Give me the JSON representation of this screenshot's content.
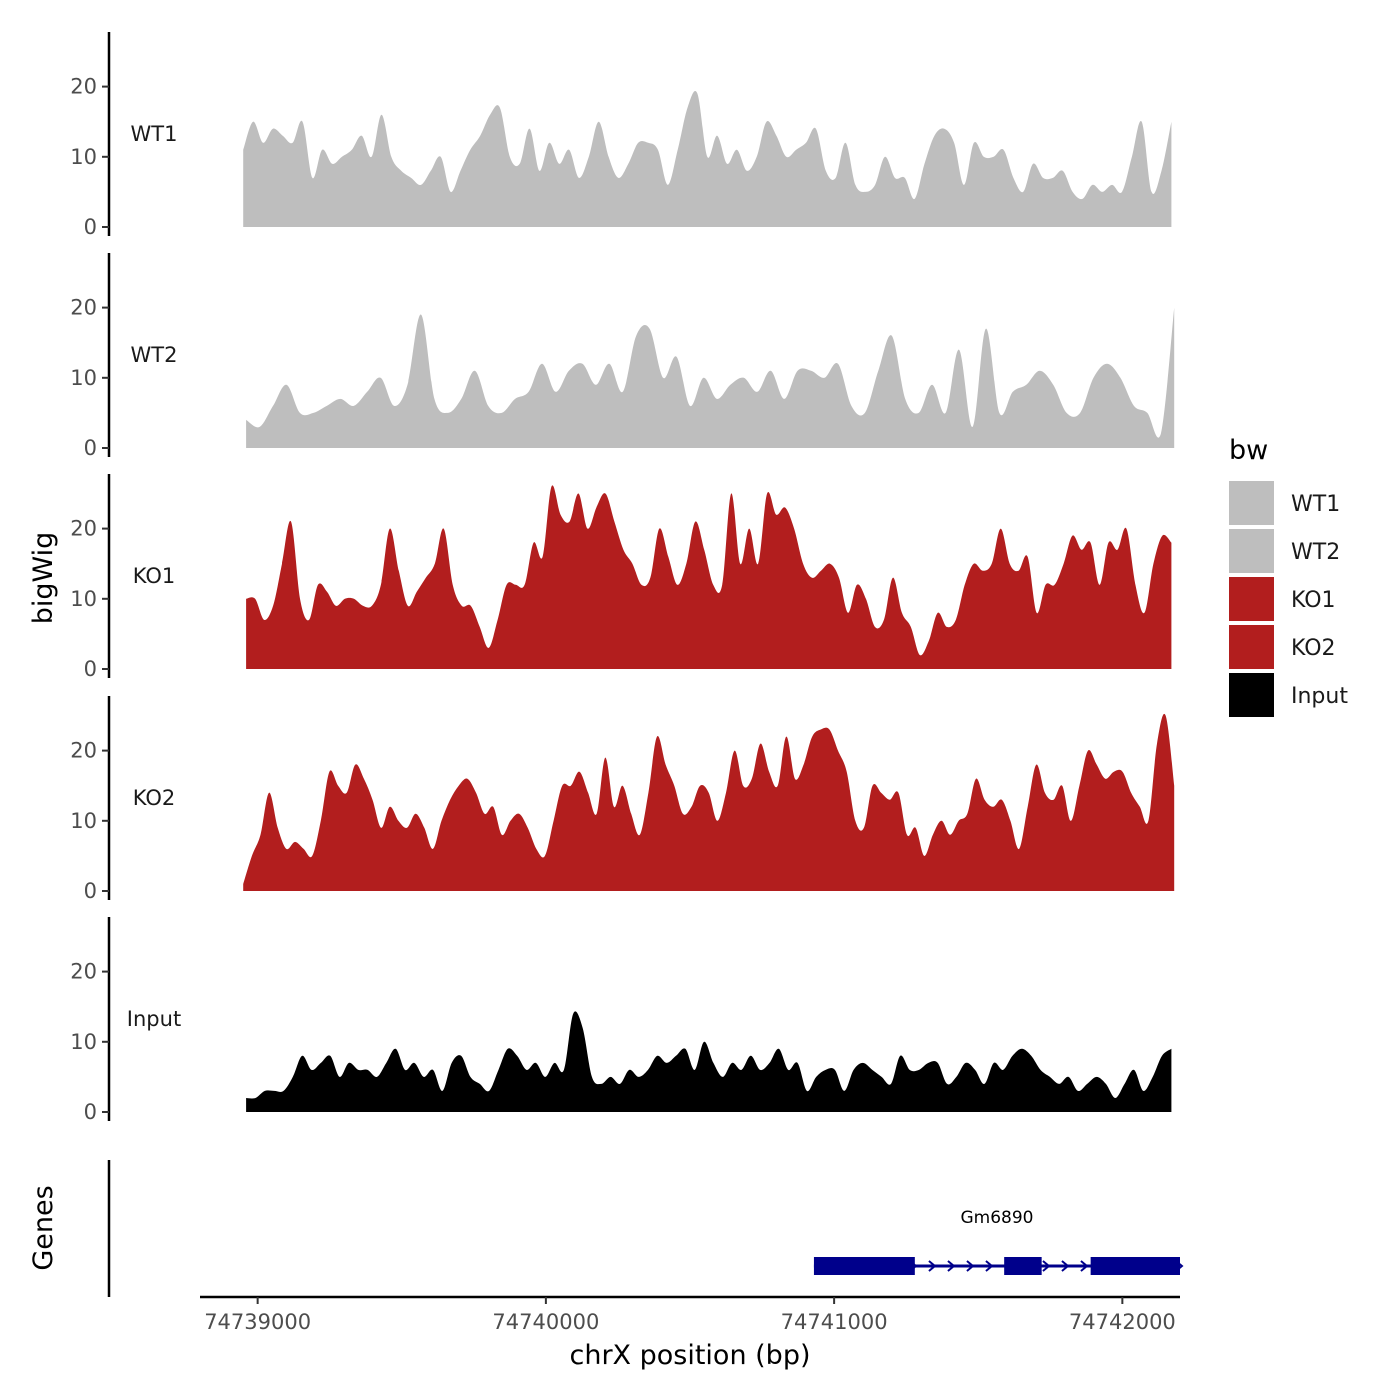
{
  "chart_data": {
    "type": "area",
    "ylabel": "bigWig",
    "genes_label": "Genes",
    "xlabel": "chrX position (bp)",
    "x_range": [
      74738800,
      74742200
    ],
    "x_ticks": [
      74739000,
      74740000,
      74741000,
      74742000
    ],
    "y_range": [
      0,
      28
    ],
    "y_ticks": [
      0,
      10,
      20
    ],
    "legend": {
      "title": "bw",
      "entries": [
        {
          "label": "WT1",
          "color": "#bebebe"
        },
        {
          "label": "WT2",
          "color": "#bebebe"
        },
        {
          "label": "KO1",
          "color": "#b21e1e"
        },
        {
          "label": "KO2",
          "color": "#b21e1e"
        },
        {
          "label": "Input",
          "color": "#000000"
        }
      ]
    },
    "series": [
      {
        "name": "WT1",
        "color": "#bebebe",
        "x_start": 74738950,
        "x_end": 74742170,
        "values": [
          11,
          15,
          12,
          14,
          13,
          12,
          15,
          7,
          11,
          9,
          10,
          11,
          13,
          10,
          16,
          10,
          8,
          7,
          6,
          8,
          10,
          5,
          8,
          11,
          13,
          16,
          17,
          10,
          9,
          14,
          8,
          12,
          9,
          11,
          7,
          10,
          15,
          10,
          7,
          9,
          12,
          12,
          11,
          6,
          11,
          17,
          19,
          10,
          13,
          9,
          11,
          8,
          10,
          15,
          13,
          10,
          11,
          12,
          14,
          8,
          7,
          12,
          6,
          5,
          6,
          10,
          7,
          7,
          4,
          9,
          13,
          14,
          12,
          6,
          12,
          10,
          10,
          11,
          7,
          5,
          9,
          7,
          7,
          8,
          5,
          4,
          6,
          5,
          6,
          5,
          10,
          15,
          5,
          8,
          15
        ]
      },
      {
        "name": "WT2",
        "color": "#bebebe",
        "x_start": 74738960,
        "x_end": 74742180,
        "values": [
          4,
          3,
          6,
          9,
          5,
          5,
          6,
          7,
          6,
          8,
          10,
          6,
          9,
          19,
          7,
          5,
          7,
          11,
          6,
          5,
          7,
          8,
          12,
          8,
          11,
          12,
          9,
          12,
          8,
          16,
          17,
          10,
          13,
          6,
          10,
          7,
          9,
          10,
          8,
          11,
          7,
          11,
          11,
          10,
          12,
          6,
          5,
          11,
          16,
          7,
          5,
          9,
          5,
          14,
          3,
          17,
          5,
          8,
          9,
          11,
          9,
          5,
          5,
          10,
          12,
          10,
          6,
          5,
          2,
          20
        ]
      },
      {
        "name": "KO1",
        "color": "#b21e1e",
        "x_start": 74738960,
        "x_end": 74742170,
        "values": [
          10,
          10,
          7,
          9,
          15,
          21,
          10,
          7,
          12,
          11,
          9,
          10,
          10,
          9,
          9,
          12,
          20,
          14,
          9,
          11,
          13,
          15,
          20,
          12,
          9,
          9,
          6,
          3,
          7,
          12,
          12,
          12,
          18,
          16,
          26,
          22,
          21,
          25,
          20,
          23,
          25,
          21,
          17,
          15,
          12,
          13,
          20,
          16,
          12,
          15,
          21,
          17,
          12,
          12,
          25,
          15,
          20,
          15,
          25,
          22,
          23,
          20,
          15,
          13,
          14,
          15,
          13,
          8,
          12,
          10,
          6,
          7,
          13,
          8,
          6,
          2,
          4,
          8,
          6,
          7,
          12,
          15,
          14,
          15,
          20,
          15,
          14,
          16,
          8,
          12,
          12,
          15,
          19,
          17,
          18,
          12,
          18,
          17,
          20,
          12,
          8,
          15,
          19,
          18
        ]
      },
      {
        "name": "KO2",
        "color": "#b21e1e",
        "x_start": 74738950,
        "x_end": 74742180,
        "values": [
          1,
          5,
          8,
          14,
          9,
          6,
          7,
          6,
          5,
          10,
          17,
          15,
          14,
          18,
          16,
          13,
          9,
          12,
          10,
          9,
          11,
          9,
          6,
          10,
          13,
          15,
          16,
          14,
          11,
          12,
          8,
          10,
          11,
          9,
          6,
          5,
          10,
          15,
          15,
          17,
          14,
          11,
          19,
          12,
          15,
          11,
          8,
          14,
          22,
          18,
          15,
          11,
          12,
          15,
          14,
          10,
          14,
          20,
          15,
          16,
          21,
          17,
          15,
          22,
          16,
          18,
          22,
          23,
          23,
          20,
          17,
          10,
          9,
          15,
          14,
          13,
          14,
          8,
          9,
          5,
          8,
          10,
          8,
          10,
          11,
          16,
          13,
          12,
          13,
          10,
          6,
          12,
          18,
          14,
          13,
          15,
          10,
          15,
          20,
          18,
          16,
          17,
          17,
          14,
          12,
          10,
          21,
          25,
          15
        ]
      },
      {
        "name": "Input",
        "color": "#000000",
        "x_start": 74738960,
        "x_end": 74742170,
        "values": [
          2,
          2,
          3,
          3,
          3,
          5,
          8,
          6,
          7,
          8,
          5,
          7,
          6,
          6,
          5,
          7,
          9,
          6,
          7,
          5,
          6,
          3,
          7,
          8,
          5,
          4,
          3,
          6,
          9,
          8,
          6,
          7,
          5,
          7,
          6,
          14,
          12,
          5,
          4,
          5,
          4,
          6,
          5,
          6,
          8,
          7,
          8,
          9,
          6,
          10,
          7,
          5,
          7,
          6,
          8,
          6,
          7,
          9,
          6,
          7,
          3,
          5,
          6,
          6,
          3,
          6,
          7,
          6,
          5,
          4,
          8,
          6,
          6,
          7,
          7,
          4,
          5,
          7,
          6,
          4,
          7,
          6,
          8,
          9,
          8,
          6,
          5,
          4,
          5,
          3,
          4,
          5,
          4,
          2,
          4,
          6,
          3,
          5,
          8,
          9
        ]
      }
    ],
    "gene": {
      "name": "Gm6890",
      "strand": "+",
      "color": "#00008b",
      "start": 74740930,
      "end": 74742200,
      "exons": [
        [
          74740930,
          74741280
        ],
        [
          74741590,
          74741720
        ],
        [
          74741890,
          74742200
        ]
      ]
    }
  }
}
